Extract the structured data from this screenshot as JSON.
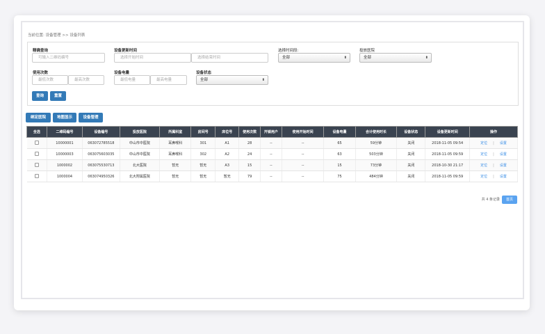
{
  "breadcrumb": "当前位置: 设备管理 >> 设备列表",
  "filters": {
    "exact_label": "精确查询",
    "exact_placeholder": "可输入二维码编号",
    "update_label": "设备更新时间",
    "start_placeholder": "选择开始时间",
    "end_placeholder": "选择结束时间",
    "period_label": "选择时间段:",
    "period_value": "全部",
    "hospital_label": "投放医院",
    "hospital_value": "全部",
    "count_label": "使用次数",
    "count_min": "最低次数",
    "count_max": "最高次数",
    "battery_label": "设备电量",
    "battery_min": "最低电量",
    "battery_max": "最高电量",
    "status_label": "设备状态",
    "status_value": "全部",
    "query": "查询",
    "reset": "重置"
  },
  "actions": [
    "绑定医院",
    "地图显示",
    "设备管理"
  ],
  "table": {
    "headers": [
      "全选",
      "二维码编号",
      "设备编号",
      "投放医院",
      "所属科室",
      "房间号",
      "床位号",
      "使用次数",
      "开锁用户",
      "使用开始时间",
      "设备电量",
      "合计使用时长",
      "设备状态",
      "设备更新时间",
      "操作"
    ],
    "rows": [
      [
        "10000001",
        "063072785518",
        "中山市中医院",
        "耳鼻喉科",
        "301",
        "A1",
        "28",
        "--",
        "--",
        "65",
        "59分钟",
        "关闭",
        "2018-11-05 09:54"
      ],
      [
        "10000003",
        "063075603035",
        "中山市中医院",
        "耳鼻喉科",
        "302",
        "A2",
        "24",
        "--",
        "--",
        "63",
        "503分钟",
        "关闭",
        "2018-11-05 09:59"
      ],
      [
        "1000002",
        "063075530713",
        "北大医院",
        "暂无",
        "暂无",
        "A3",
        "15",
        "--",
        "--",
        "15",
        "73分钟",
        "关闭",
        "2018-10-30 21:17"
      ],
      [
        "1000004",
        "063074950326",
        "北大附属医院",
        "暂无",
        "暂无",
        "暂无",
        "79",
        "--",
        "--",
        "75",
        "484分钟",
        "关闭",
        "2018-11-05 09:59"
      ]
    ],
    "locate": "定位",
    "settings": "设置",
    "divider": "|"
  },
  "pagination": {
    "total": "共 4 条记录",
    "first": "首页"
  }
}
